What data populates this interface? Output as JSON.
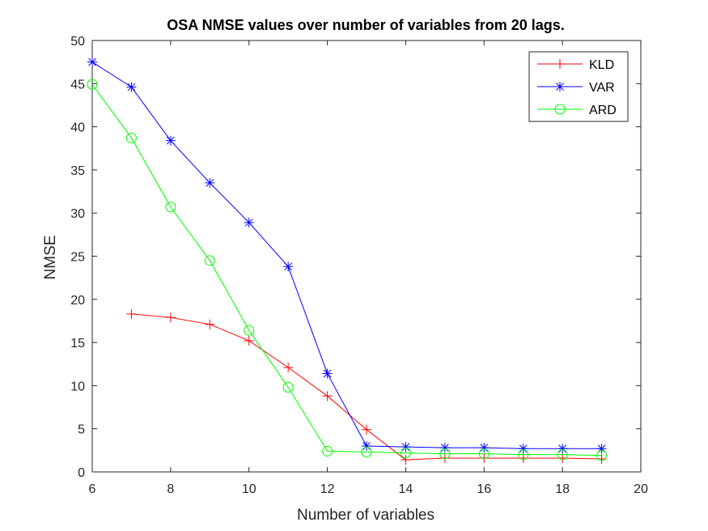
{
  "chart_data": {
    "type": "line",
    "title": "OSA NMSE values over number of variables from 20 lags.",
    "xlabel": "Number of variables",
    "ylabel": "NMSE",
    "xlim": [
      6,
      20
    ],
    "ylim": [
      0,
      50
    ],
    "xticks": [
      "6",
      "8",
      "10",
      "12",
      "14",
      "16",
      "18",
      "20"
    ],
    "yticks": [
      "0",
      "5",
      "10",
      "15",
      "20",
      "25",
      "30",
      "35",
      "40",
      "45",
      "50"
    ],
    "grid": false,
    "legend_position": "top-right",
    "series": [
      {
        "name": "KLD",
        "color": "#ff0000",
        "marker": "plus",
        "x": [
          7,
          8,
          9,
          10,
          11,
          12,
          13,
          14,
          15,
          16,
          17,
          18,
          19
        ],
        "y": [
          18.3,
          17.9,
          17.1,
          15.2,
          12.1,
          8.8,
          4.9,
          1.4,
          1.6,
          1.6,
          1.6,
          1.6,
          1.5
        ]
      },
      {
        "name": "VAR",
        "color": "#0000ff",
        "marker": "asterisk",
        "x": [
          6,
          7,
          8,
          9,
          10,
          11,
          12,
          13,
          14,
          15,
          16,
          17,
          18,
          19
        ],
        "y": [
          47.5,
          44.6,
          38.4,
          33.5,
          28.9,
          23.8,
          11.4,
          3.0,
          2.9,
          2.8,
          2.8,
          2.7,
          2.7,
          2.7
        ]
      },
      {
        "name": "ARD",
        "color": "#00ff00",
        "marker": "circle",
        "x": [
          6,
          7,
          8,
          9,
          10,
          11,
          12,
          13,
          14,
          15,
          16,
          17,
          18,
          19
        ],
        "y": [
          44.9,
          38.7,
          30.7,
          24.5,
          16.4,
          9.8,
          2.4,
          2.3,
          2.2,
          2.1,
          2.1,
          2.0,
          2.0,
          1.9
        ]
      }
    ]
  }
}
